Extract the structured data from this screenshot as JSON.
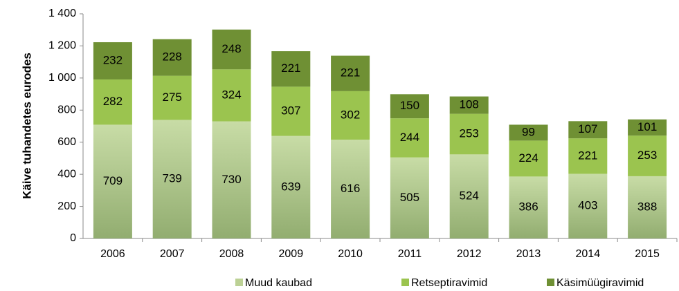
{
  "chart_data": {
    "type": "stacked_bar",
    "y_label": "Käive tuhandetes eurodes",
    "categories": [
      "2006",
      "2007",
      "2008",
      "2009",
      "2010",
      "2011",
      "2012",
      "2013",
      "2014",
      "2015"
    ],
    "series": [
      {
        "name": "Muud kaubad",
        "color": "#bcd195",
        "values": [
          709,
          739,
          730,
          639,
          616,
          505,
          524,
          386,
          403,
          388
        ]
      },
      {
        "name": "Retseptiravimid",
        "color": "#9bc44f",
        "values": [
          282,
          275,
          324,
          307,
          302,
          244,
          253,
          224,
          221,
          253
        ]
      },
      {
        "name": "Käsimüügiravimid",
        "color": "#6f9034",
        "values": [
          232,
          228,
          248,
          221,
          221,
          150,
          108,
          99,
          107,
          101
        ]
      }
    ],
    "ylim": [
      0,
      1400
    ],
    "yticks": [
      0,
      200,
      400,
      600,
      800,
      {
        "value": 1000,
        "label": "1 000"
      },
      {
        "value": 1200,
        "label": "1 200"
      },
      {
        "value": 1400,
        "label": "1 400"
      }
    ],
    "legend": "bottom"
  }
}
